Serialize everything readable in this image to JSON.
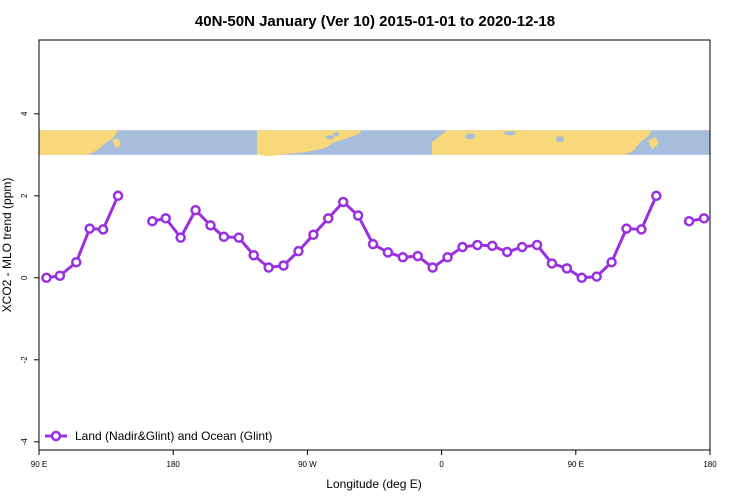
{
  "chart_data": {
    "type": "line",
    "title": "40N-50N January (Ver 10)   2015-01-01 to 2020-12-18",
    "xlabel": "Longitude (deg E)",
    "ylabel": "XCO2 - MLO trend (ppm)",
    "xlim": [
      90,
      540
    ],
    "ylim": [
      -4.2,
      5.8
    ],
    "x_ticks": [
      {
        "value": 90,
        "label": "90 E"
      },
      {
        "value": 180,
        "label": "180"
      },
      {
        "value": 270,
        "label": "90 W"
      },
      {
        "value": 360,
        "label": "0"
      },
      {
        "value": 450,
        "label": "90 E"
      },
      {
        "value": 540,
        "label": "180"
      }
    ],
    "y_ticks": [
      {
        "value": -4,
        "label": "-4"
      },
      {
        "value": -2,
        "label": "-2"
      },
      {
        "value": 0,
        "label": "0"
      },
      {
        "value": 2,
        "label": "2"
      },
      {
        "value": 4,
        "label": "4"
      }
    ],
    "grid": false,
    "legend_position": "bottom-left",
    "map_strip": {
      "y_range": [
        3.0,
        3.6
      ],
      "ocean_color": "#a8bcdc",
      "land_color": "#f8d878"
    },
    "series": [
      {
        "name": "Land (Nadir&Glint) and Ocean (Glint)",
        "color": "#9b30e0",
        "segments": [
          {
            "x": [
              95,
              104,
              115,
              124,
              133,
              143
            ],
            "y": [
              0.0,
              0.05,
              0.38,
              1.2,
              1.18,
              2.0
            ]
          },
          {
            "x": [
              166,
              175,
              185,
              195,
              205,
              214,
              224,
              234,
              244,
              254,
              264,
              274,
              284,
              294,
              304,
              314,
              324,
              334,
              344,
              354,
              364,
              374,
              384,
              394,
              404,
              414,
              424,
              434,
              444,
              454,
              464,
              474,
              484,
              494,
              504,
              514
            ],
            "y": [
              1.38,
              1.45,
              0.98,
              1.65,
              1.28,
              1.0,
              0.98,
              0.55,
              0.25,
              0.3,
              0.65,
              1.05,
              1.45,
              1.85,
              1.52,
              0.82,
              0.62,
              0.5,
              0.53,
              0.25,
              0.5,
              0.75,
              0.8,
              0.78,
              0.63,
              0.75,
              0.8,
              0.35,
              0.23,
              0.0,
              0.03,
              0.38,
              1.2,
              1.18,
              2.0,
              null
            ]
          },
          {
            "x": [
              526,
              536
            ],
            "y": [
              1.38,
              1.45
            ]
          }
        ]
      }
    ]
  }
}
